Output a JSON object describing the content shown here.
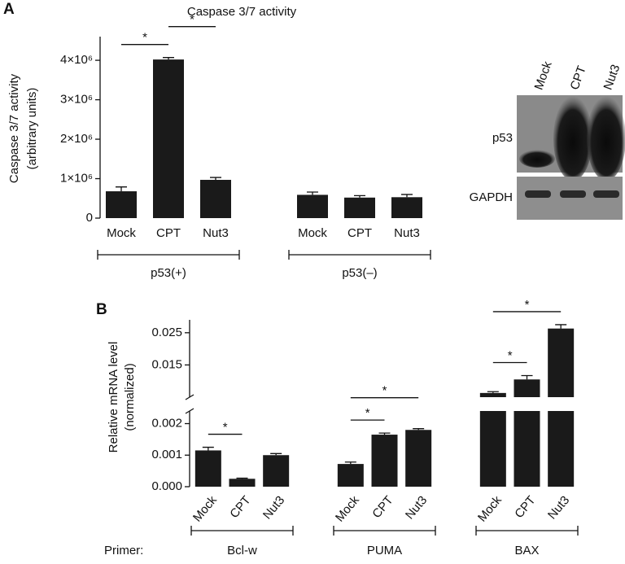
{
  "panels": [
    "A",
    "B"
  ],
  "chart_data": [
    {
      "type": "bar",
      "title": "Caspase 3/7 activity",
      "ylabel": [
        "Caspase 3/7 activity",
        "(arbitrary units)"
      ],
      "ylim": [
        0,
        4600000
      ],
      "yticks": [
        0,
        {
          "value": 1000000,
          "label": "1×10⁶"
        },
        {
          "value": 2000000,
          "label": "2×10⁶"
        },
        {
          "value": 3000000,
          "label": "3×10⁶"
        },
        {
          "value": 4000000,
          "label": "4×10⁶"
        }
      ],
      "color": "#1a1a1a",
      "groups": [
        {
          "name": "p53(+)",
          "categories": [
            "Mock",
            "CPT",
            "Nut3"
          ],
          "values": [
            680000,
            4020000,
            970000
          ],
          "errors": [
            110000,
            50000,
            60000
          ],
          "significance": [
            {
              "between": [
                0,
                1
              ],
              "label": "*"
            },
            {
              "between": [
                1,
                2
              ],
              "label": "*"
            }
          ]
        },
        {
          "name": "p53(–)",
          "categories": [
            "Mock",
            "CPT",
            "Nut3"
          ],
          "values": [
            590000,
            520000,
            530000
          ],
          "errors": [
            70000,
            50000,
            70000
          ]
        }
      ]
    },
    {
      "type": "bar",
      "ylabel": [
        "Relative mRNA level",
        "(normalized)"
      ],
      "ylim": [
        0,
        0.029
      ],
      "y_break": [
        0.0024,
        0.005
      ],
      "yticks": [
        {
          "value": 0,
          "label": "0.000"
        },
        0.001,
        0.002,
        0.015,
        0.025
      ],
      "color": "#1a1a1a",
      "group_label": "Primer:",
      "groups": [
        {
          "name": "Bcl-w",
          "categories": [
            "Mock",
            "CPT",
            "Nut3"
          ],
          "values": [
            0.00115,
            0.00025,
            0.001
          ],
          "errors": [
            0.0001,
            2e-05,
            5e-05
          ],
          "significance": [
            {
              "between": [
                0,
                1
              ],
              "label": "*"
            }
          ]
        },
        {
          "name": "PUMA",
          "categories": [
            "Mock",
            "CPT",
            "Nut3"
          ],
          "values": [
            0.00072,
            0.00165,
            0.0018
          ],
          "errors": [
            6e-05,
            5e-05,
            4e-05
          ],
          "significance": [
            {
              "between": [
                0,
                1
              ],
              "label": "*"
            },
            {
              "between": [
                0,
                2
              ],
              "label": "*"
            }
          ]
        },
        {
          "name": "BAX",
          "categories": [
            "Mock",
            "CPT",
            "Nut3"
          ],
          "values": [
            0.0063,
            0.0105,
            0.0263
          ],
          "errors": [
            0.0004,
            0.0012,
            0.0012
          ],
          "significance": [
            {
              "between": [
                0,
                1
              ],
              "label": "*"
            },
            {
              "between": [
                0,
                2
              ],
              "label": "*"
            }
          ]
        }
      ]
    }
  ],
  "blot": {
    "lanes": [
      "Mock",
      "CPT",
      "Nut3"
    ],
    "rows": [
      "p53",
      "GAPDH"
    ]
  }
}
